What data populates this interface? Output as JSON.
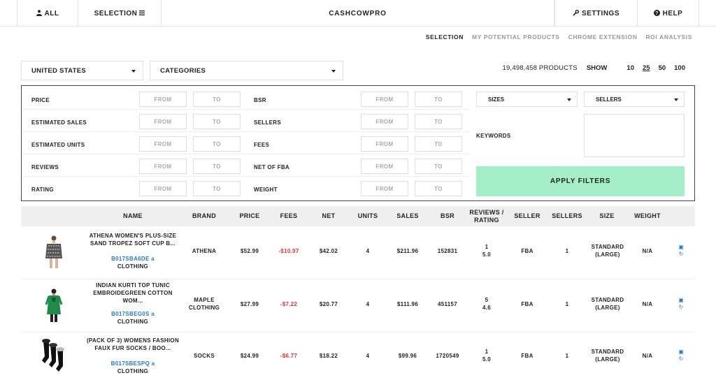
{
  "topbar": {
    "all_label": "ALL",
    "selection_label": "SELECTION",
    "title": "CASHCOWPRO",
    "settings_label": "SETTINGS",
    "help_label": "HELP"
  },
  "subnav": [
    "SELECTION",
    "MY POTENTIAL PRODUCTS",
    "CHROME EXTENSION",
    "ROI ANALYSIS"
  ],
  "country": "UNITED STATES",
  "categories": "CATEGORIES",
  "products_count": "19,498,458 PRODUCTS",
  "show_label": "SHOW",
  "show_options": [
    "10",
    "25",
    "50",
    "100"
  ],
  "show_selected": "25",
  "filters": {
    "from": "FROM",
    "to": "TO",
    "left": [
      "PRICE",
      "ESTIMATED SALES",
      "ESTIMATED UNITS",
      "REVIEWS",
      "RATING"
    ],
    "mid": [
      "BSR",
      "SELLERS",
      "FEES",
      "NET OF FBA",
      "WEIGHT"
    ],
    "sizes": "SIZES",
    "sellers": "SELLERS",
    "keywords": "KEYWORDS",
    "apply": "APPLY FILTERS"
  },
  "columns": {
    "name": "NAME",
    "brand": "BRAND",
    "price": "PRICE",
    "fees": "FEES",
    "net": "NET",
    "units": "UNITS",
    "sales": "SALES",
    "bsr": "BSR",
    "reviews_rating": "REVIEWS / RATING",
    "seller": "SELLER",
    "sellers": "SELLERS",
    "size": "SIZE",
    "weight": "WEIGHT"
  },
  "rows": [
    {
      "name": "ATHENA WOMEN'S PLUS-SIZE SAND TROPEZ SOFT CUP B...",
      "asin": "B017SBA6DE",
      "category": "CLOTHING",
      "brand": "ATHENA",
      "price": "$52.99",
      "fees": "-$10.97",
      "net": "$42.02",
      "units": "4",
      "sales": "$211.96",
      "bsr": "152831",
      "reviews": "1",
      "rating": "5.0",
      "seller": "FBA",
      "sellers": "1",
      "size": "STANDARD (LARGE)",
      "weight": "N/A"
    },
    {
      "name": "INDIAN KURTI TOP TUNIC EMBROIDEGREEN COTTON WOM...",
      "asin": "B017SBEG0S",
      "category": "CLOTHING",
      "brand": "MAPLE CLOTHING",
      "price": "$27.99",
      "fees": "-$7.22",
      "net": "$20.77",
      "units": "4",
      "sales": "$111.96",
      "bsr": "451157",
      "reviews": "5",
      "rating": "4.6",
      "seller": "FBA",
      "sellers": "1",
      "size": "STANDARD (LARGE)",
      "weight": "N/A"
    },
    {
      "name": "(PACK OF 3) WOMENS FASHION FAUX FUR SOCKS / BOO...",
      "asin": "B017SBESPQ",
      "category": "CLOTHING",
      "brand": "SOCKS",
      "price": "$24.99",
      "fees": "-$6.77",
      "net": "$18.22",
      "units": "4",
      "sales": "$99.96",
      "bsr": "1720549",
      "reviews": "1",
      "rating": "5.0",
      "seller": "FBA",
      "sellers": "1",
      "size": "STANDARD (LARGE)",
      "weight": "N/A"
    }
  ]
}
